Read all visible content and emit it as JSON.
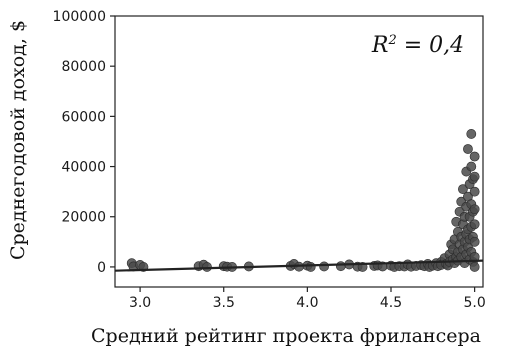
{
  "chart_data": {
    "type": "scatter",
    "xlabel": "Средний рейтинг проекта фрилансера",
    "ylabel": "Среднегодовой доход, $",
    "xlim": [
      2.85,
      5.05
    ],
    "ylim": [
      -8000,
      100000
    ],
    "x_ticks": [
      3.0,
      3.5,
      4.0,
      4.5,
      5.0
    ],
    "x_tick_labels": [
      "3.0",
      "3.5",
      "4.0",
      "4.5",
      "5.0"
    ],
    "y_ticks": [
      0,
      20000,
      40000,
      60000,
      80000,
      100000
    ],
    "y_tick_labels": [
      "0",
      "20000",
      "40000",
      "60000",
      "80000",
      "100000"
    ],
    "grid": false,
    "annotation": {
      "r2_label": "R",
      "r2_sup": "2",
      "r2_value": " = 0,4"
    },
    "trendline": {
      "x": [
        2.85,
        5.05
      ],
      "y": [
        -1500,
        2500
      ]
    },
    "points": [
      {
        "x": 2.95,
        "y": 1500
      },
      {
        "x": 2.96,
        "y": 200
      },
      {
        "x": 3.0,
        "y": 800
      },
      {
        "x": 3.02,
        "y": 0
      },
      {
        "x": 3.35,
        "y": 300
      },
      {
        "x": 3.38,
        "y": 900
      },
      {
        "x": 3.4,
        "y": 0
      },
      {
        "x": 3.5,
        "y": 300
      },
      {
        "x": 3.52,
        "y": 100
      },
      {
        "x": 3.55,
        "y": 0
      },
      {
        "x": 3.65,
        "y": 200
      },
      {
        "x": 3.9,
        "y": 400
      },
      {
        "x": 3.92,
        "y": 1200
      },
      {
        "x": 3.95,
        "y": 100
      },
      {
        "x": 4.0,
        "y": 500
      },
      {
        "x": 4.02,
        "y": 0
      },
      {
        "x": 4.1,
        "y": 200
      },
      {
        "x": 4.2,
        "y": 300
      },
      {
        "x": 4.25,
        "y": 1000
      },
      {
        "x": 4.3,
        "y": 100
      },
      {
        "x": 4.33,
        "y": 0
      },
      {
        "x": 4.4,
        "y": 400
      },
      {
        "x": 4.42,
        "y": 600
      },
      {
        "x": 4.45,
        "y": 200
      },
      {
        "x": 4.5,
        "y": 500
      },
      {
        "x": 4.52,
        "y": 0
      },
      {
        "x": 4.55,
        "y": 300
      },
      {
        "x": 4.58,
        "y": 200
      },
      {
        "x": 4.6,
        "y": 1000
      },
      {
        "x": 4.62,
        "y": 100
      },
      {
        "x": 4.65,
        "y": 400
      },
      {
        "x": 4.68,
        "y": 700
      },
      {
        "x": 4.7,
        "y": 300
      },
      {
        "x": 4.72,
        "y": 1200
      },
      {
        "x": 4.73,
        "y": 0
      },
      {
        "x": 4.75,
        "y": 500
      },
      {
        "x": 4.77,
        "y": 1500
      },
      {
        "x": 4.78,
        "y": 300
      },
      {
        "x": 4.8,
        "y": 2000
      },
      {
        "x": 4.8,
        "y": 800
      },
      {
        "x": 4.82,
        "y": 3500
      },
      {
        "x": 4.83,
        "y": 1200
      },
      {
        "x": 4.84,
        "y": 600
      },
      {
        "x": 4.85,
        "y": 5000
      },
      {
        "x": 4.85,
        "y": 2000
      },
      {
        "x": 4.86,
        "y": 9000
      },
      {
        "x": 4.87,
        "y": 3000
      },
      {
        "x": 4.87,
        "y": 7000
      },
      {
        "x": 4.88,
        "y": 1500
      },
      {
        "x": 4.88,
        "y": 11000
      },
      {
        "x": 4.89,
        "y": 4000
      },
      {
        "x": 4.89,
        "y": 18000
      },
      {
        "x": 4.9,
        "y": 6000
      },
      {
        "x": 4.9,
        "y": 14000
      },
      {
        "x": 4.9,
        "y": 2500
      },
      {
        "x": 4.91,
        "y": 22000
      },
      {
        "x": 4.91,
        "y": 9000
      },
      {
        "x": 4.92,
        "y": 12000
      },
      {
        "x": 4.92,
        "y": 26000
      },
      {
        "x": 4.92,
        "y": 4000
      },
      {
        "x": 4.93,
        "y": 31000
      },
      {
        "x": 4.93,
        "y": 17000
      },
      {
        "x": 4.93,
        "y": 7000
      },
      {
        "x": 4.94,
        "y": 20000
      },
      {
        "x": 4.94,
        "y": 10000
      },
      {
        "x": 4.94,
        "y": 1500
      },
      {
        "x": 4.95,
        "y": 38000
      },
      {
        "x": 4.95,
        "y": 24000
      },
      {
        "x": 4.95,
        "y": 13000
      },
      {
        "x": 4.95,
        "y": 5000
      },
      {
        "x": 4.96,
        "y": 47000
      },
      {
        "x": 4.96,
        "y": 28000
      },
      {
        "x": 4.96,
        "y": 15000
      },
      {
        "x": 4.96,
        "y": 8000
      },
      {
        "x": 4.97,
        "y": 33000
      },
      {
        "x": 4.97,
        "y": 20000
      },
      {
        "x": 4.97,
        "y": 11000
      },
      {
        "x": 4.97,
        "y": 3000
      },
      {
        "x": 4.98,
        "y": 53000
      },
      {
        "x": 4.98,
        "y": 40000
      },
      {
        "x": 4.98,
        "y": 25000
      },
      {
        "x": 4.98,
        "y": 16000
      },
      {
        "x": 4.98,
        "y": 6000
      },
      {
        "x": 4.99,
        "y": 35000
      },
      {
        "x": 4.99,
        "y": 22000
      },
      {
        "x": 4.99,
        "y": 12000
      },
      {
        "x": 4.99,
        "y": 2000
      },
      {
        "x": 5.0,
        "y": 44000
      },
      {
        "x": 5.0,
        "y": 36000
      },
      {
        "x": 5.0,
        "y": 30000
      },
      {
        "x": 5.0,
        "y": 23000
      },
      {
        "x": 5.0,
        "y": 17000
      },
      {
        "x": 5.0,
        "y": 10000
      },
      {
        "x": 5.0,
        "y": 4000
      },
      {
        "x": 5.0,
        "y": 0
      }
    ]
  }
}
